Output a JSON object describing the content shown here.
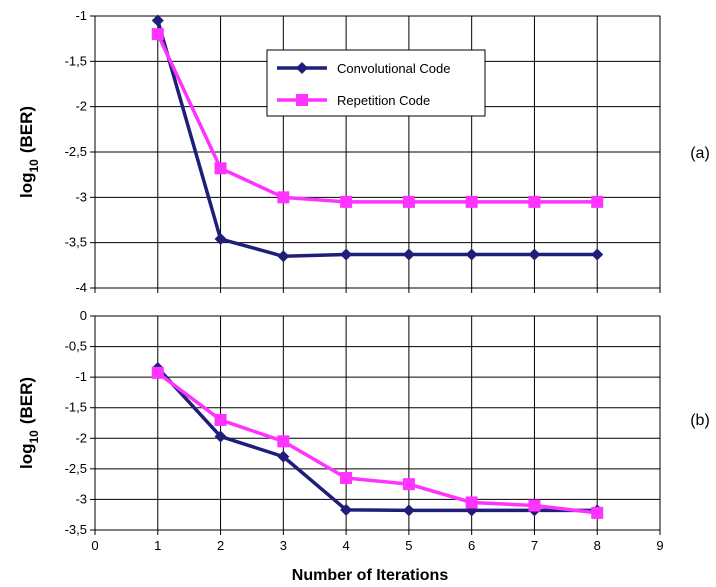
{
  "chart_data": [
    {
      "type": "line",
      "panel_label": "(a)",
      "ylabel": "log10 (BER)",
      "ylabel_base": "log",
      "ylabel_sub": "10",
      "ylabel_rest": "(BER)",
      "ylim": [
        -4,
        -1
      ],
      "yticks": [
        "-1",
        "-1,5",
        "-2",
        "-2,5",
        "-3",
        "-3,5",
        "-4"
      ],
      "x": [
        1,
        2,
        3,
        4,
        5,
        6,
        7,
        8
      ],
      "xlim": [
        0,
        9
      ],
      "grid": true,
      "legend_placement": "top-center",
      "series": [
        {
          "name": "Convolutional Code",
          "color": "#1f1f7a",
          "marker": "diamond",
          "values": [
            -1.05,
            -3.46,
            -3.65,
            -3.63,
            -3.63,
            -3.63,
            -3.63,
            -3.63
          ]
        },
        {
          "name": "Repetition Code",
          "color": "#ff33ff",
          "marker": "square",
          "values": [
            -1.2,
            -2.68,
            -3.0,
            -3.05,
            -3.05,
            -3.05,
            -3.05,
            -3.05
          ]
        }
      ]
    },
    {
      "type": "line",
      "panel_label": "(b)",
      "ylabel": "log10 (BER)",
      "ylabel_base": "log",
      "ylabel_sub": "10",
      "ylabel_rest": "(BER)",
      "ylim": [
        -3.5,
        0
      ],
      "yticks": [
        "0",
        "-0,5",
        "-1",
        "-1,5",
        "-2",
        "-2,5",
        "-3",
        "-3,5"
      ],
      "x": [
        1,
        2,
        3,
        4,
        5,
        6,
        7,
        8
      ],
      "xlim": [
        0,
        9
      ],
      "xticks": [
        "0",
        "1",
        "2",
        "3",
        "4",
        "5",
        "6",
        "7",
        "8",
        "9"
      ],
      "xlabel": "Number of Iterations",
      "grid": true,
      "series": [
        {
          "name": "Convolutional Code",
          "color": "#1f1f7a",
          "marker": "diamond",
          "values": [
            -0.85,
            -1.97,
            -2.3,
            -3.17,
            -3.18,
            -3.18,
            -3.18,
            -3.18
          ]
        },
        {
          "name": "Repetition Code",
          "color": "#ff33ff",
          "marker": "square",
          "values": [
            -0.93,
            -1.7,
            -2.05,
            -2.65,
            -2.75,
            -3.05,
            -3.1,
            -3.22
          ]
        }
      ]
    }
  ]
}
